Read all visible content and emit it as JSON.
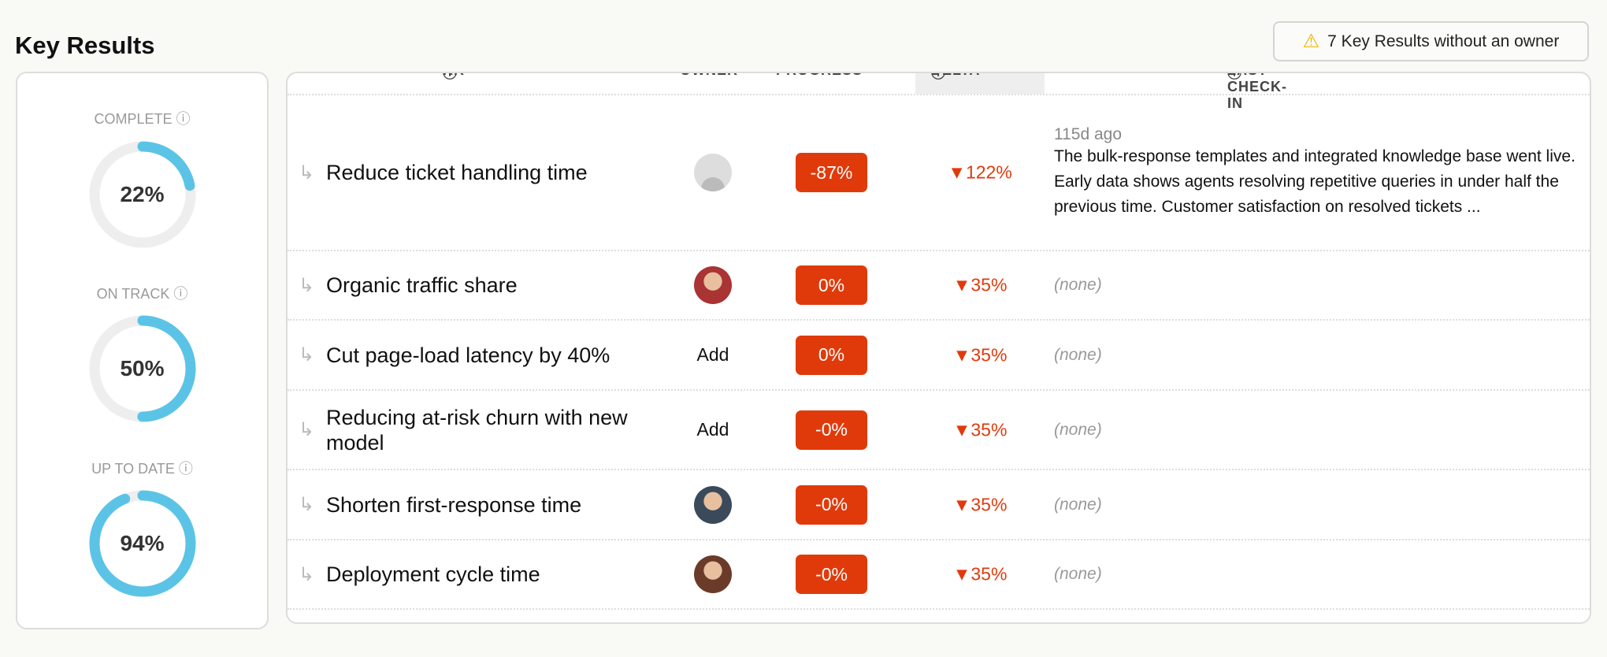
{
  "title": "Key Results",
  "warning": {
    "icon": "warning-icon",
    "label": "7 Key Results without an owner"
  },
  "stats": [
    {
      "label": "COMPLETE",
      "value": "22%",
      "fraction": 0.22
    },
    {
      "label": "ON TRACK",
      "value": "50%",
      "fraction": 0.5
    },
    {
      "label": "UP TO DATE",
      "value": "94%",
      "fraction": 0.94
    }
  ],
  "stat_color": "#5bc4e6",
  "columns": {
    "kr": "KR",
    "owner": "OWNER",
    "progress": "PROGRESS",
    "delta": "DELTA",
    "last_check_in": "LAST CHECK-IN"
  },
  "rows": [
    {
      "kr": "Reduce ticket handling time",
      "owner": "avatar-placeholder",
      "progress": "-87%",
      "delta": "▼122%",
      "check_ago": "115d ago",
      "check_text": "The bulk-response templates and integrated knowledge base went live. Early data shows agents resolving repetitive queries in under half the previous time. Customer satisfaction on resolved tickets ..."
    },
    {
      "kr": "Organic traffic share",
      "owner": "avatar",
      "progress": "0%",
      "delta": "▼35%",
      "check_text": "(none)"
    },
    {
      "kr": "Cut page-load latency by 40%",
      "owner_label": "Add",
      "progress": "0%",
      "delta": "▼35%",
      "check_text": "(none)"
    },
    {
      "kr": "Reducing at-risk churn with new model",
      "owner_label": "Add",
      "progress": "-0%",
      "delta": "▼35%",
      "check_text": "(none)"
    },
    {
      "kr": "Shorten first-response time",
      "owner": "avatar",
      "progress": "-0%",
      "delta": "▼35%",
      "check_text": "(none)"
    },
    {
      "kr": "Deployment cycle time",
      "owner": "avatar",
      "progress": "-0%",
      "delta": "▼35%",
      "check_text": "(none)"
    }
  ]
}
